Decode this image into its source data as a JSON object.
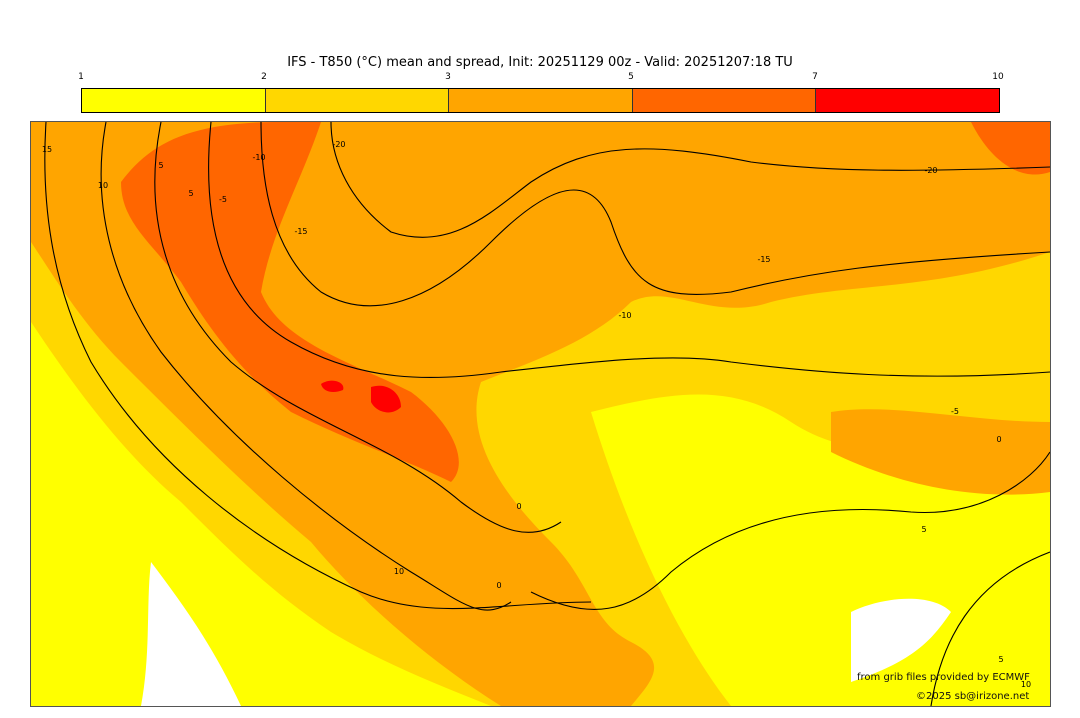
{
  "title": "IFS - T850 (°C) mean and spread, Init: 20251129 00z - Valid: 20251207:18 TU",
  "colorbar": {
    "ticks": [
      "1",
      "2",
      "3",
      "5",
      "7",
      "10"
    ],
    "colors": [
      "#ffff00",
      "#ffd700",
      "#ffa500",
      "#ff6600",
      "#ff0000"
    ]
  },
  "contour_labels": [
    "15",
    "10",
    "5",
    "5",
    "-5",
    "-10",
    "-15",
    "-20",
    "-20",
    "-15",
    "-10",
    "-5",
    "0",
    "5",
    "0",
    "0",
    "10",
    "5",
    "10"
  ],
  "credits": {
    "source": "from grib files provided by ECMWF",
    "copyright": "©2025 sb@irizone.net"
  }
}
